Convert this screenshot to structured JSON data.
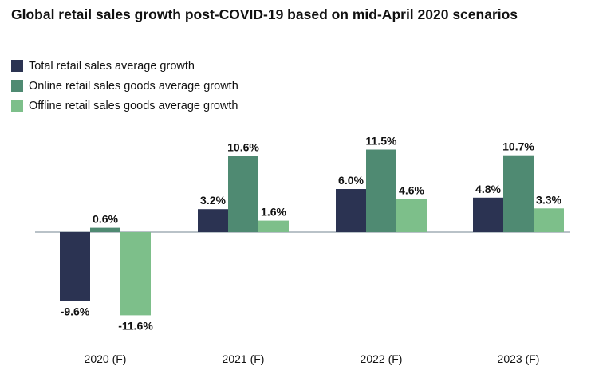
{
  "chart_data": {
    "type": "bar",
    "title": "Global retail sales growth post-COVID-19 based on mid-April 2020 scenarios",
    "categories": [
      "2020 (F)",
      "2021 (F)",
      "2022 (F)",
      "2023 (F)"
    ],
    "series": [
      {
        "name": "Total retail sales average growth",
        "color": "#2b3352",
        "values": [
          -9.6,
          3.2,
          6.0,
          4.8
        ],
        "labels": [
          "-9.6%",
          "3.2%",
          "6.0%",
          "4.8%"
        ]
      },
      {
        "name": "Online retail sales goods average growth",
        "color": "#4f8a72",
        "values": [
          0.6,
          10.6,
          11.5,
          10.7
        ],
        "labels": [
          "0.6%",
          "10.6%",
          "11.5%",
          "10.7%"
        ]
      },
      {
        "name": "Offline retail sales goods average growth",
        "color": "#7dbf8a",
        "values": [
          -11.6,
          1.6,
          4.6,
          3.3
        ],
        "labels": [
          "-11.6%",
          "1.6%",
          "4.6%",
          "3.3%"
        ]
      }
    ],
    "legend_position": "top-left",
    "grid": false,
    "baseline_color": "#b9c2c8"
  }
}
